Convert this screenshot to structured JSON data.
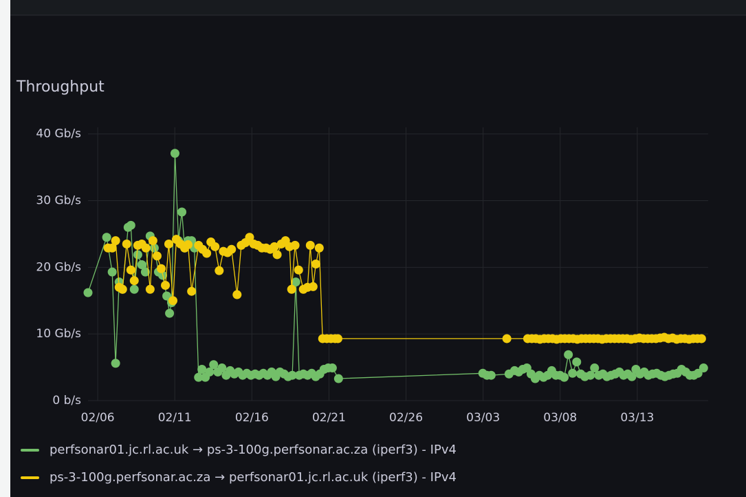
{
  "chart_data": {
    "type": "line",
    "title": "Throughput",
    "xlim": [
      36.37,
      76.6
    ],
    "xticks": [
      {
        "value": 37,
        "label": "02/06"
      },
      {
        "value": 42,
        "label": "02/11"
      },
      {
        "value": 47,
        "label": "02/16"
      },
      {
        "value": 52,
        "label": "02/21"
      },
      {
        "value": 57,
        "label": "02/26"
      },
      {
        "value": 62,
        "label": "03/03"
      },
      {
        "value": 67,
        "label": "03/08"
      },
      {
        "value": 72,
        "label": "03/13"
      }
    ],
    "ylim": [
      0,
      41
    ],
    "yticks": [
      {
        "value": 0,
        "label": "0 b/s"
      },
      {
        "value": 10,
        "label": "10 Gb/s"
      },
      {
        "value": 20,
        "label": "20 Gb/s"
      },
      {
        "value": 30,
        "label": "30 Gb/s"
      },
      {
        "value": 40,
        "label": "40 Gb/s"
      }
    ],
    "grid": true,
    "legend": "bottom",
    "series": [
      {
        "name": "perfsonar01.jc.rl.ac.uk → ps-3-100g.perfsonar.ac.za (iperf3) - IPv4",
        "color": "#73bf69",
        "x": [
          36.37,
          37.58,
          37.94,
          38.16,
          38.39,
          38.61,
          38.97,
          39.15,
          39.37,
          39.6,
          39.86,
          40.09,
          40.4,
          40.67,
          40.94,
          41.21,
          41.48,
          41.66,
          41.79,
          42.01,
          42.24,
          42.46,
          42.64,
          42.86,
          43.09,
          43.27,
          43.54,
          43.76,
          43.98,
          44.25,
          44.52,
          44.79,
          45.06,
          45.33,
          45.59,
          45.86,
          46.13,
          46.4,
          46.67,
          46.94,
          47.21,
          47.47,
          47.74,
          48.01,
          48.28,
          48.55,
          48.82,
          49.09,
          49.35,
          49.62,
          49.85,
          50.07,
          50.34,
          50.61,
          50.88,
          51.14,
          51.41,
          51.68,
          51.95,
          52.22,
          52.62,
          61.98,
          62.25,
          62.52,
          63.68,
          64.04,
          64.31,
          64.57,
          64.84,
          65.11,
          65.38,
          65.65,
          65.92,
          66.19,
          66.45,
          66.72,
          66.99,
          67.26,
          67.53,
          67.8,
          68.07,
          68.33,
          68.6,
          68.96,
          69.23,
          69.5,
          69.77,
          70.03,
          70.3,
          70.57,
          70.84,
          71.11,
          71.38,
          71.65,
          71.91,
          72.18,
          72.45,
          72.72,
          72.99,
          73.26,
          73.53,
          73.79,
          74.06,
          74.33,
          74.6,
          74.87,
          75.14,
          75.41,
          75.67,
          75.94,
          76.3
        ],
        "values": [
          16.2,
          24.5,
          19.3,
          5.6,
          17.8,
          16.7,
          26.0,
          26.3,
          16.7,
          21.9,
          20.4,
          19.3,
          24.7,
          22.9,
          19.3,
          18.8,
          15.7,
          13.1,
          14.7,
          37.1,
          24.0,
          28.3,
          22.9,
          24.0,
          24.0,
          22.9,
          3.5,
          4.7,
          3.5,
          4.3,
          5.4,
          4.3,
          4.9,
          3.8,
          4.5,
          4.0,
          4.3,
          3.8,
          4.1,
          3.8,
          4.0,
          3.8,
          4.1,
          3.8,
          4.3,
          3.6,
          4.3,
          4.0,
          3.6,
          3.8,
          17.8,
          3.8,
          4.0,
          3.8,
          4.1,
          3.6,
          4.0,
          4.7,
          4.9,
          4.9,
          3.3,
          4.1,
          3.8,
          3.8,
          4.0,
          4.5,
          4.3,
          4.7,
          4.9,
          4.0,
          3.3,
          3.8,
          3.5,
          3.8,
          4.5,
          3.8,
          3.8,
          3.5,
          6.9,
          4.1,
          5.8,
          4.0,
          3.6,
          3.8,
          4.9,
          3.8,
          4.0,
          3.6,
          3.8,
          4.0,
          4.3,
          3.8,
          4.0,
          3.6,
          4.7,
          4.0,
          4.3,
          3.8,
          4.0,
          4.1,
          3.8,
          3.6,
          3.8,
          4.0,
          4.1,
          4.7,
          4.3,
          3.8,
          3.8,
          4.1,
          4.9
        ]
      },
      {
        "name": "ps-3-100g.perfsonar.ac.za → perfsonar01.jc.rl.ac.uk (iperf3) - IPv4",
        "color": "#f2cc0c",
        "x": [
          37.67,
          37.94,
          38.16,
          38.39,
          38.61,
          38.88,
          39.15,
          39.37,
          39.6,
          39.86,
          40.13,
          40.4,
          40.58,
          40.85,
          41.12,
          41.39,
          41.61,
          41.88,
          42.1,
          42.37,
          42.64,
          42.86,
          43.09,
          43.54,
          43.8,
          44.07,
          44.34,
          44.61,
          44.88,
          45.15,
          45.42,
          45.68,
          46.04,
          46.31,
          46.58,
          46.85,
          47.12,
          47.38,
          47.65,
          47.92,
          48.19,
          48.46,
          48.64,
          48.91,
          49.18,
          49.44,
          49.58,
          49.8,
          50.03,
          50.34,
          50.61,
          50.79,
          50.97,
          51.15,
          51.37,
          51.59,
          51.86,
          52.13,
          52.4,
          52.58,
          63.54,
          64.89,
          65.16,
          65.42,
          65.69,
          65.96,
          66.23,
          66.5,
          66.77,
          67.04,
          67.3,
          67.57,
          67.84,
          68.11,
          68.38,
          68.65,
          68.92,
          69.18,
          69.45,
          69.72,
          69.99,
          70.26,
          70.53,
          70.8,
          71.06,
          71.33,
          71.6,
          71.87,
          72.14,
          72.41,
          72.68,
          72.94,
          73.21,
          73.48,
          73.75,
          74.02,
          74.29,
          74.56,
          74.82,
          75.09,
          75.36,
          75.63,
          75.9,
          76.17
        ],
        "values": [
          22.9,
          22.9,
          24.0,
          17.0,
          16.7,
          23.5,
          19.6,
          18.0,
          23.3,
          23.5,
          22.9,
          16.7,
          24.0,
          21.7,
          19.8,
          17.3,
          23.5,
          15.0,
          24.2,
          23.5,
          22.9,
          23.4,
          16.4,
          23.3,
          22.7,
          22.1,
          23.8,
          23.1,
          19.5,
          22.4,
          22.2,
          22.7,
          15.9,
          23.3,
          23.7,
          24.5,
          23.5,
          23.3,
          22.9,
          22.9,
          22.7,
          23.1,
          21.9,
          23.5,
          24.0,
          23.1,
          16.7,
          23.3,
          19.6,
          16.7,
          17.0,
          23.3,
          17.1,
          20.5,
          22.9,
          9.3,
          9.3,
          9.3,
          9.3,
          9.3,
          9.3,
          9.3,
          9.3,
          9.3,
          9.2,
          9.3,
          9.3,
          9.3,
          9.2,
          9.3,
          9.3,
          9.3,
          9.3,
          9.2,
          9.3,
          9.3,
          9.3,
          9.3,
          9.3,
          9.2,
          9.3,
          9.3,
          9.3,
          9.3,
          9.3,
          9.3,
          9.2,
          9.3,
          9.4,
          9.3,
          9.3,
          9.3,
          9.3,
          9.4,
          9.5,
          9.3,
          9.4,
          9.2,
          9.3,
          9.3,
          9.2,
          9.3,
          9.3,
          9.3
        ]
      }
    ]
  }
}
